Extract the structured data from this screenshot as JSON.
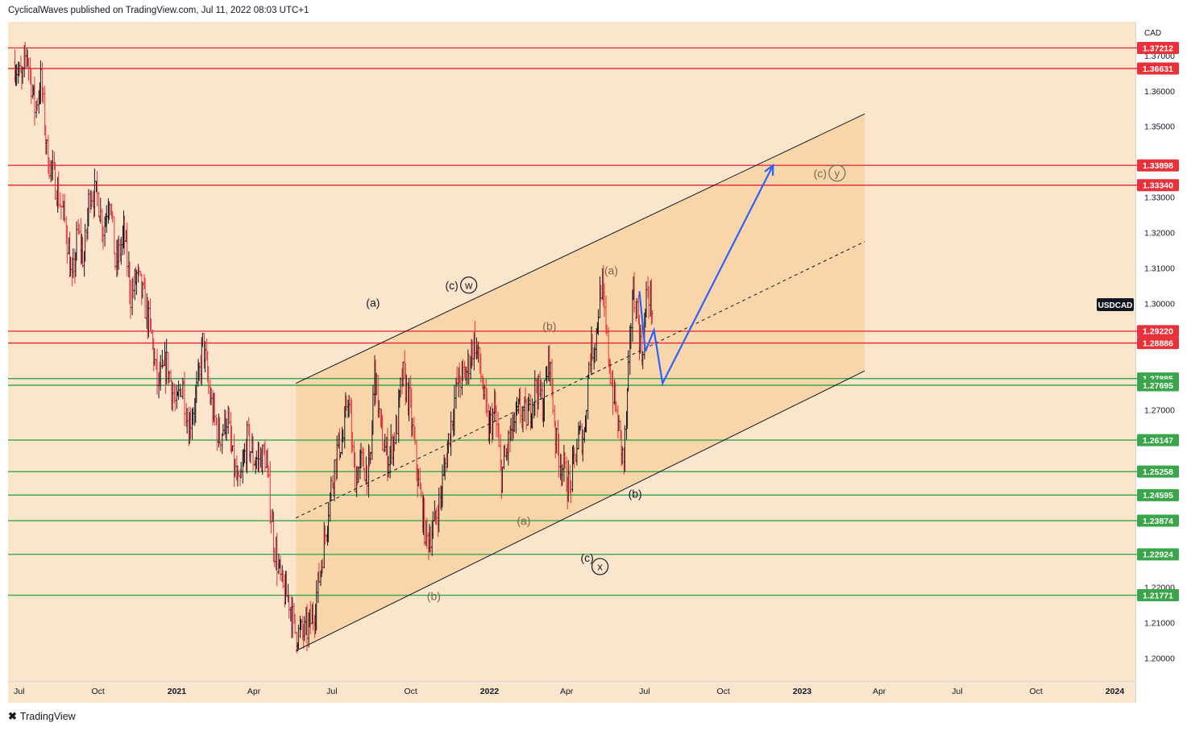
{
  "header": {
    "publisher": "CyclicalWaves published on TradingView.com, Jul 11, 2022 08:03 UTC+1"
  },
  "footer": {
    "brand": "TradingView",
    "logo": "tradingview-logo-icon"
  },
  "chart_data": {
    "type": "candlestick",
    "symbol": "USDCAD",
    "currency": "CAD",
    "y_range": [
      1.1935,
      1.3795
    ],
    "x_range": [
      "2020-06-18",
      "2024-01-25"
    ],
    "y_ticks": [
      "1.20000",
      "1.21000",
      "1.22000",
      "1.27000",
      "1.30000",
      "1.31000",
      "1.32000",
      "1.33000",
      "1.35000",
      "1.36000",
      "1.37000"
    ],
    "x_ticks": [
      {
        "label": "Jul",
        "date": "2020-07-01",
        "bold": false
      },
      {
        "label": "Oct",
        "date": "2020-10-01",
        "bold": false
      },
      {
        "label": "2021",
        "date": "2021-01-01",
        "bold": true
      },
      {
        "label": "Apr",
        "date": "2021-04-01",
        "bold": false
      },
      {
        "label": "Jul",
        "date": "2021-07-01",
        "bold": false
      },
      {
        "label": "Oct",
        "date": "2021-10-01",
        "bold": false
      },
      {
        "label": "2022",
        "date": "2022-01-01",
        "bold": true
      },
      {
        "label": "Apr",
        "date": "2022-04-01",
        "bold": false
      },
      {
        "label": "Jul",
        "date": "2022-07-01",
        "bold": false
      },
      {
        "label": "Oct",
        "date": "2022-10-01",
        "bold": false
      },
      {
        "label": "2023",
        "date": "2023-01-01",
        "bold": true
      },
      {
        "label": "Apr",
        "date": "2023-04-01",
        "bold": false
      },
      {
        "label": "Jul",
        "date": "2023-07-01",
        "bold": false
      },
      {
        "label": "Oct",
        "date": "2023-10-01",
        "bold": false
      },
      {
        "label": "2024",
        "date": "2024-01-01",
        "bold": true
      }
    ],
    "resistance_levels": [
      "1.37212",
      "1.36631",
      "1.33898",
      "1.33340",
      "1.29220",
      "1.28886"
    ],
    "support_levels": [
      "1.27885",
      "1.27695",
      "1.26147",
      "1.25258",
      "1.24595",
      "1.23874",
      "1.22924",
      "1.21771"
    ],
    "symbol_tag": "USDCAD",
    "symbol_tag_price": 1.2997,
    "price_path": [
      [
        "2020-06-26",
        1.368
      ],
      [
        "2020-07-05",
        1.362
      ],
      [
        "2020-07-10",
        1.372
      ],
      [
        "2020-07-20",
        1.355
      ],
      [
        "2020-07-27",
        1.363
      ],
      [
        "2020-08-03",
        1.342
      ],
      [
        "2020-08-15",
        1.332
      ],
      [
        "2020-08-25",
        1.322
      ],
      [
        "2020-09-01",
        1.305
      ],
      [
        "2020-09-08",
        1.32
      ],
      [
        "2020-09-15",
        1.312
      ],
      [
        "2020-09-22",
        1.332
      ],
      [
        "2020-10-01",
        1.33
      ],
      [
        "2020-10-08",
        1.321
      ],
      [
        "2020-10-15",
        1.332
      ],
      [
        "2020-10-22",
        1.31
      ],
      [
        "2020-11-01",
        1.32
      ],
      [
        "2020-11-09",
        1.302
      ],
      [
        "2020-11-16",
        1.308
      ],
      [
        "2020-11-25",
        1.3
      ],
      [
        "2020-12-02",
        1.292
      ],
      [
        "2020-12-10",
        1.277
      ],
      [
        "2020-12-21",
        1.283
      ],
      [
        "2021-01-01",
        1.27
      ],
      [
        "2021-01-08",
        1.279
      ],
      [
        "2021-01-15",
        1.265
      ],
      [
        "2021-01-25",
        1.275
      ],
      [
        "2021-02-01",
        1.289
      ],
      [
        "2021-02-10",
        1.272
      ],
      [
        "2021-02-20",
        1.262
      ],
      [
        "2021-03-01",
        1.268
      ],
      [
        "2021-03-08",
        1.255
      ],
      [
        "2021-03-15",
        1.247
      ],
      [
        "2021-03-25",
        1.262
      ],
      [
        "2021-04-01",
        1.256
      ],
      [
        "2021-04-15",
        1.257
      ],
      [
        "2021-04-25",
        1.232
      ],
      [
        "2021-05-05",
        1.219
      ],
      [
        "2021-05-12",
        1.217
      ],
      [
        "2021-05-20",
        1.207
      ],
      [
        "2021-06-01",
        1.207
      ],
      [
        "2021-06-10",
        1.212
      ],
      [
        "2021-06-15",
        1.22
      ],
      [
        "2021-06-22",
        1.232
      ],
      [
        "2021-07-01",
        1.249
      ],
      [
        "2021-07-08",
        1.259
      ],
      [
        "2021-07-15",
        1.262
      ],
      [
        "2021-07-20",
        1.275
      ],
      [
        "2021-07-28",
        1.251
      ],
      [
        "2021-08-05",
        1.255
      ],
      [
        "2021-08-15",
        1.252
      ],
      [
        "2021-08-20",
        1.282
      ],
      [
        "2021-08-28",
        1.263
      ],
      [
        "2021-09-05",
        1.256
      ],
      [
        "2021-09-15",
        1.265
      ],
      [
        "2021-09-22",
        1.28
      ],
      [
        "2021-09-30",
        1.272
      ],
      [
        "2021-10-10",
        1.25
      ],
      [
        "2021-10-20",
        1.233
      ],
      [
        "2021-10-28",
        1.237
      ],
      [
        "2021-11-05",
        1.245
      ],
      [
        "2021-11-15",
        1.262
      ],
      [
        "2021-11-25",
        1.278
      ],
      [
        "2021-12-05",
        1.28
      ],
      [
        "2021-12-15",
        1.29
      ],
      [
        "2021-12-22",
        1.281
      ],
      [
        "2021-12-31",
        1.264
      ],
      [
        "2022-01-08",
        1.27
      ],
      [
        "2022-01-15",
        1.251
      ],
      [
        "2022-01-25",
        1.262
      ],
      [
        "2022-02-05",
        1.27
      ],
      [
        "2022-02-15",
        1.268
      ],
      [
        "2022-02-25",
        1.277
      ],
      [
        "2022-03-05",
        1.271
      ],
      [
        "2022-03-12",
        1.286
      ],
      [
        "2022-03-20",
        1.261
      ],
      [
        "2022-03-30",
        1.252
      ],
      [
        "2022-04-05",
        1.248
      ],
      [
        "2022-04-15",
        1.262
      ],
      [
        "2022-04-22",
        1.263
      ],
      [
        "2022-04-28",
        1.285
      ],
      [
        "2022-05-05",
        1.29
      ],
      [
        "2022-05-12",
        1.306
      ],
      [
        "2022-05-18",
        1.29
      ],
      [
        "2022-05-25",
        1.276
      ],
      [
        "2022-06-01",
        1.265
      ],
      [
        "2022-06-07",
        1.255
      ],
      [
        "2022-06-13",
        1.28
      ],
      [
        "2022-06-17",
        1.303
      ],
      [
        "2022-06-22",
        1.3
      ],
      [
        "2022-06-28",
        1.285
      ],
      [
        "2022-07-05",
        1.304
      ],
      [
        "2022-07-11",
        1.298
      ]
    ],
    "forecast_path": [
      [
        "2022-06-25",
        1.3035
      ],
      [
        "2022-07-02",
        1.2865
      ],
      [
        "2022-07-12",
        1.2925
      ],
      [
        "2022-07-22",
        1.2775
      ],
      [
        "2022-11-28",
        1.339
      ]
    ],
    "channel": {
      "upper": [
        [
          "2021-05-20",
          1.2775
        ],
        [
          "2023-03-15",
          1.3535
        ]
      ],
      "lower": [
        [
          "2021-05-20",
          1.202
        ],
        [
          "2023-03-15",
          1.281
        ]
      ],
      "mid": [
        [
          "2021-05-20",
          1.2395
        ],
        [
          "2023-03-15",
          1.3175
        ]
      ]
    },
    "wave_labels": [
      {
        "text": "(a)",
        "date": "2021-08-18",
        "price": 1.3002,
        "style": "dark"
      },
      {
        "text": "(c)",
        "date": "2021-11-18",
        "price": 1.3052,
        "style": "dark",
        "circled": "w"
      },
      {
        "text": "(b)",
        "date": "2021-10-28",
        "price": 1.2175,
        "style": "tan"
      },
      {
        "text": "(a)",
        "date": "2022-02-10",
        "price": 1.2388,
        "style": "tan"
      },
      {
        "text": "(b)",
        "date": "2022-03-12",
        "price": 1.2937,
        "style": "tan"
      },
      {
        "text": "(c)",
        "date": "2022-04-25",
        "price": 1.2283,
        "style": "dark"
      },
      {
        "text": "",
        "date": "2022-05-10",
        "price": 1.2258,
        "style": "dark",
        "circled": "x"
      },
      {
        "text": "(a)",
        "date": "2022-05-23",
        "price": 1.3094,
        "style": "tan"
      },
      {
        "text": "(b)",
        "date": "2022-06-20",
        "price": 1.2464,
        "style": "dark"
      },
      {
        "text": "(c)",
        "date": "2023-01-22",
        "price": 1.3368,
        "style": "tan",
        "circled": "y"
      }
    ]
  }
}
